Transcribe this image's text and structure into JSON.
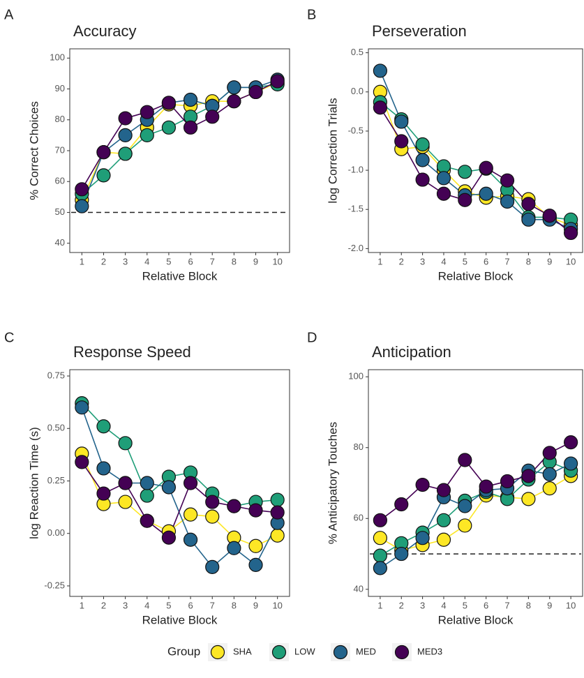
{
  "chart_data": [
    {
      "type": "line",
      "panel": "A",
      "title": "Accuracy",
      "xlabel": "Relative Block",
      "ylabel": "% Correct Choices",
      "categories": [
        "1",
        "2",
        "3",
        "4",
        "5",
        "6",
        "7",
        "8",
        "9",
        "10"
      ],
      "ylim": [
        37,
        103
      ],
      "yticks": [
        40,
        50,
        60,
        70,
        80,
        90,
        100
      ],
      "hline": 50,
      "series": [
        {
          "name": "SHA",
          "color": "#fde725",
          "values": [
            54,
            69.5,
            69,
            77.5,
            85,
            84.5,
            86,
            86,
            89,
            92
          ]
        },
        {
          "name": "LOW",
          "color": "#1f9e78",
          "values": [
            56,
            62,
            69,
            75,
            77.5,
            81,
            84.5,
            90.5,
            90.5,
            91.5
          ]
        },
        {
          "name": "MED",
          "color": "#23648c",
          "values": [
            52,
            69.5,
            75,
            80,
            85.5,
            86.5,
            84.5,
            90.5,
            90.5,
            93
          ]
        },
        {
          "name": "MED3",
          "color": "#440154",
          "values": [
            57.5,
            69.5,
            80.5,
            82.5,
            85.5,
            77.5,
            81,
            86,
            89,
            92.5
          ]
        }
      ]
    },
    {
      "type": "line",
      "panel": "B",
      "title": "Perseveration",
      "xlabel": "Relative Block",
      "ylabel": "log Correction Trials",
      "categories": [
        "1",
        "2",
        "3",
        "4",
        "5",
        "6",
        "7",
        "8",
        "9",
        "10"
      ],
      "ylim": [
        -2.05,
        0.55
      ],
      "yticks": [
        0.5,
        {
          "value": 0,
          "label": "0.0"
        },
        -0.5,
        {
          "value": -1,
          "label": "-1.0"
        },
        -1.5,
        {
          "value": -2,
          "label": "-2.0"
        }
      ],
      "series": [
        {
          "name": "SHA",
          "color": "#fde725",
          "values": [
            0.0,
            -0.73,
            -0.7,
            -1.0,
            -1.27,
            -1.35,
            -1.33,
            -1.37,
            -1.6,
            -1.7
          ]
        },
        {
          "name": "LOW",
          "color": "#1f9e78",
          "values": [
            -0.13,
            -0.35,
            -0.67,
            -0.95,
            -1.02,
            -0.98,
            -1.25,
            -1.6,
            -1.6,
            -1.63
          ]
        },
        {
          "name": "MED",
          "color": "#23648c",
          "values": [
            0.27,
            -0.38,
            -0.87,
            -1.1,
            -1.32,
            -1.3,
            -1.4,
            -1.63,
            -1.63,
            -1.75
          ]
        },
        {
          "name": "MED3",
          "color": "#440154",
          "values": [
            -0.2,
            -0.63,
            -1.12,
            -1.3,
            -1.38,
            -0.97,
            -1.13,
            -1.43,
            -1.58,
            -1.8
          ]
        }
      ]
    },
    {
      "type": "line",
      "panel": "C",
      "title": "Response Speed",
      "xlabel": "Relative Block",
      "ylabel": "log Reaction Time (s)",
      "categories": [
        "1",
        "2",
        "3",
        "4",
        "5",
        "6",
        "7",
        "8",
        "9",
        "10"
      ],
      "ylim": [
        -0.3,
        0.78
      ],
      "yticks": [
        -0.25,
        {
          "value": 0,
          "label": "0.00"
        },
        0.25,
        {
          "value": 0.5,
          "label": "0.50"
        },
        0.75
      ],
      "series": [
        {
          "name": "SHA",
          "color": "#fde725",
          "values": [
            0.38,
            0.14,
            0.15,
            0.06,
            0.01,
            0.09,
            0.08,
            -0.02,
            -0.06,
            -0.01
          ]
        },
        {
          "name": "LOW",
          "color": "#1f9e78",
          "values": [
            0.62,
            0.51,
            0.43,
            0.18,
            0.27,
            0.29,
            0.19,
            0.13,
            0.15,
            0.16
          ]
        },
        {
          "name": "MED",
          "color": "#23648c",
          "values": [
            0.6,
            0.31,
            0.24,
            0.24,
            0.22,
            -0.03,
            -0.16,
            -0.07,
            -0.15,
            0.05
          ]
        },
        {
          "name": "MED3",
          "color": "#440154",
          "values": [
            0.34,
            0.19,
            0.24,
            0.06,
            -0.02,
            0.24,
            0.15,
            0.13,
            0.11,
            0.1
          ]
        }
      ]
    },
    {
      "type": "line",
      "panel": "D",
      "title": "Anticipation",
      "xlabel": "Relative Block",
      "ylabel": "% Anticipatory Touches",
      "categories": [
        "1",
        "2",
        "3",
        "4",
        "5",
        "6",
        "7",
        "8",
        "9",
        "10"
      ],
      "ylim": [
        38,
        102
      ],
      "yticks": [
        40,
        60,
        80,
        100
      ],
      "hline": 50,
      "series": [
        {
          "name": "SHA",
          "color": "#fde725",
          "values": [
            54.5,
            51,
            52.5,
            54,
            58,
            66.5,
            66,
            65.5,
            68.5,
            72
          ]
        },
        {
          "name": "LOW",
          "color": "#1f9e78",
          "values": [
            49.5,
            53,
            56,
            59.5,
            65,
            67.5,
            65.5,
            71,
            76,
            73.5
          ]
        },
        {
          "name": "MED",
          "color": "#23648c",
          "values": [
            46,
            50,
            54.5,
            66,
            63.5,
            68,
            68.5,
            73.5,
            72.5,
            75.5
          ]
        },
        {
          "name": "MED3",
          "color": "#440154",
          "values": [
            59.5,
            64,
            69.5,
            68,
            76.5,
            69,
            70.5,
            72,
            78.5,
            81.5
          ]
        }
      ]
    }
  ],
  "legend": {
    "title": "Group",
    "position": "bottom"
  }
}
